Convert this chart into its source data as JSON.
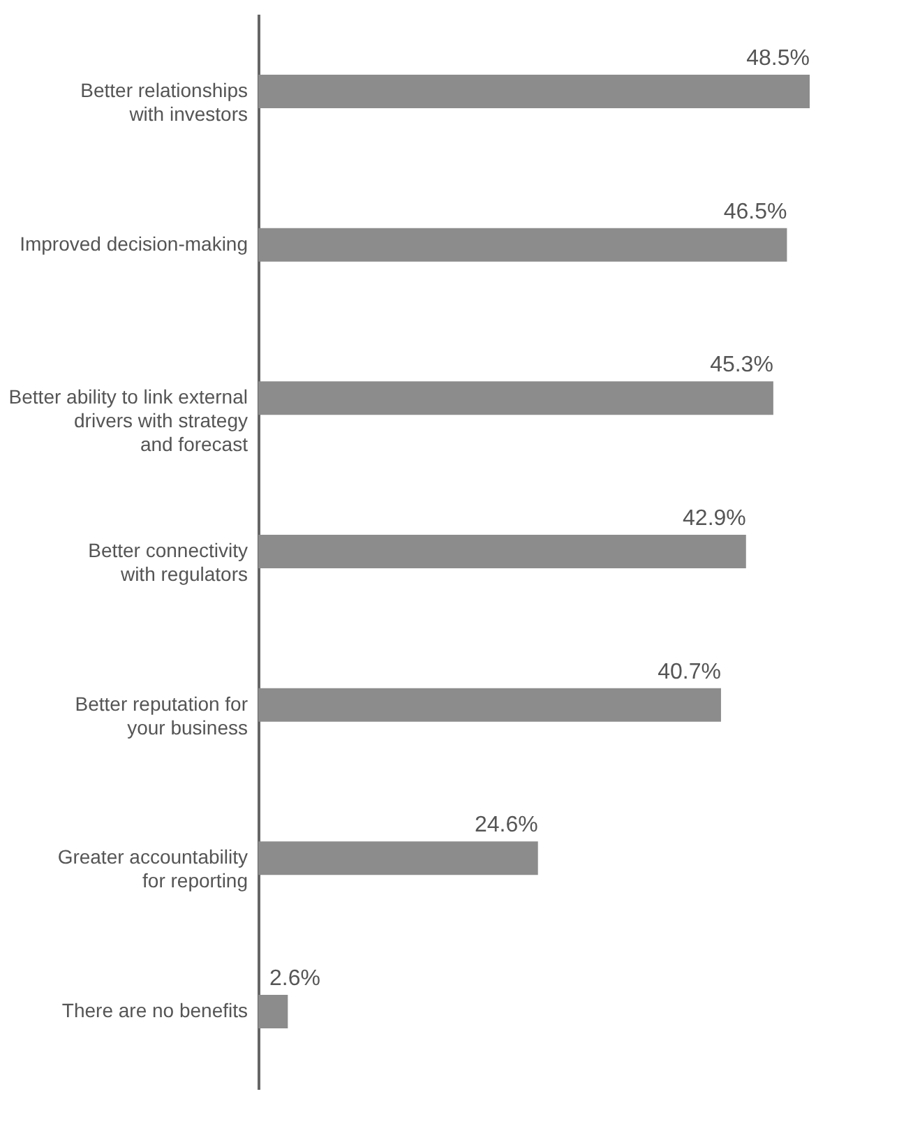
{
  "chart_data": {
    "type": "bar",
    "orientation": "horizontal",
    "categories": [
      "Better relationships\nwith investors",
      "Improved decision-making",
      "Better ability to link external\ndrivers with strategy\nand forecast",
      "Better connectivity\nwith regulators",
      "Better reputation for\nyour business",
      "Greater accountability\nfor reporting",
      "There are no benefits"
    ],
    "values": [
      48.5,
      46.5,
      45.3,
      42.9,
      40.7,
      24.6,
      2.6
    ],
    "value_labels": [
      "48.5%",
      "46.5%",
      "45.3%",
      "42.9%",
      "40.7%",
      "24.6%",
      "2.6%"
    ],
    "color": "#8c8c8c",
    "tick_labels": "y"
  }
}
